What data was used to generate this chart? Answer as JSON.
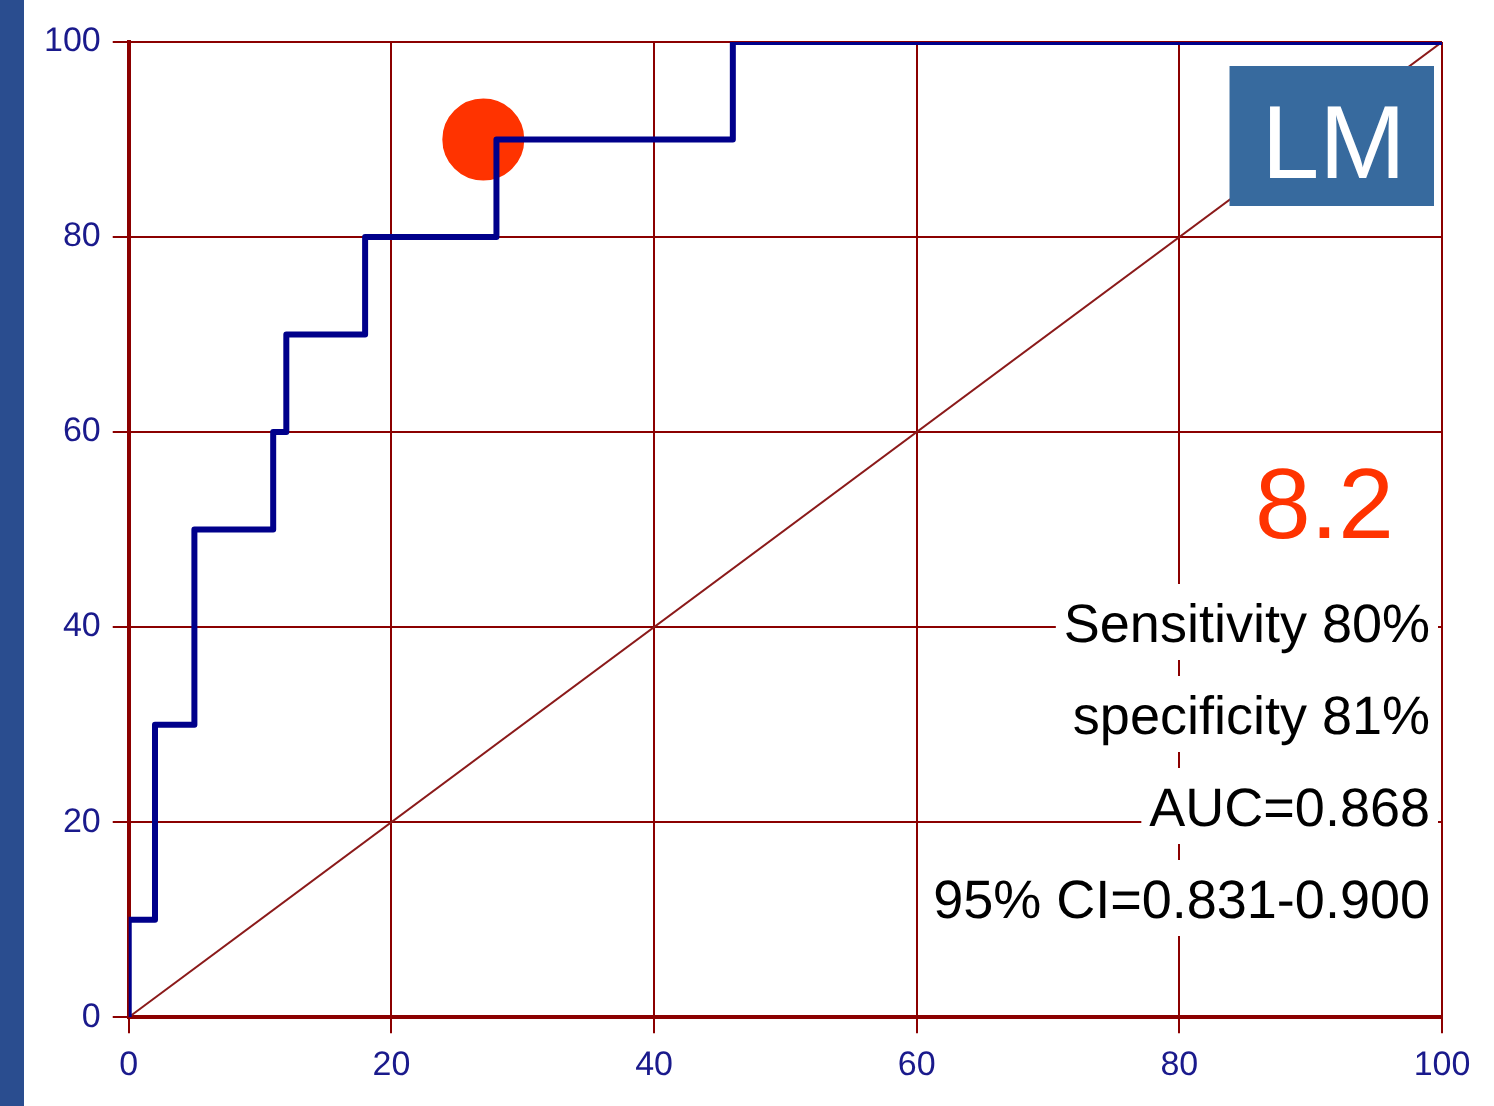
{
  "chart_data": {
    "type": "line",
    "xlim": [
      0,
      100
    ],
    "ylim": [
      0,
      100
    ],
    "xticks": [
      0,
      20,
      40,
      60,
      80,
      100
    ],
    "yticks": [
      0,
      20,
      40,
      60,
      80,
      100
    ],
    "grid": true,
    "legend": false,
    "line_style": "solid",
    "series": [
      {
        "color": "#00008b",
        "x": [
          0,
          0,
          2,
          2,
          5,
          5,
          11,
          11,
          12,
          12,
          18,
          18,
          28,
          28,
          46,
          46,
          100
        ],
        "values": [
          0,
          10,
          10,
          30,
          30,
          50,
          50,
          60,
          60,
          70,
          70,
          80,
          80,
          90,
          90,
          100,
          100
        ]
      },
      {
        "color": "#8b1a1a",
        "x": [
          0,
          100
        ],
        "values": [
          0,
          100
        ]
      },
      {
        "type": "scatter",
        "color": "#ff3300",
        "x": [
          27
        ],
        "values": [
          90
        ]
      }
    ],
    "annotations": [
      "LM",
      "8.2",
      "Sensitivity 80%",
      "specificity 81%",
      "AUC=0.868",
      "95% CI=0.831-0.900"
    ]
  }
}
